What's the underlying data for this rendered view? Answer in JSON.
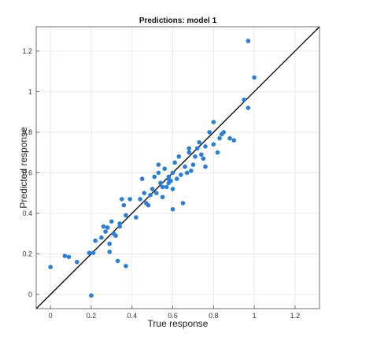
{
  "chart_data": {
    "type": "scatter",
    "title": "Predictions: model 1",
    "xlabel": "True response",
    "ylabel": "Predicted response",
    "xlim": [
      -0.07,
      1.32
    ],
    "ylim": [
      -0.07,
      1.32
    ],
    "xticks": [
      "0",
      "0.2",
      "0.4",
      "0.6",
      "0.8",
      "1",
      "1.2"
    ],
    "yticks": [
      "0",
      "0.2",
      "0.4",
      "0.6",
      "0.8",
      "1",
      "1.2"
    ],
    "xtick_values": [
      0,
      0.2,
      0.4,
      0.6,
      0.8,
      1.0,
      1.2
    ],
    "ytick_values": [
      0,
      0.2,
      0.4,
      0.6,
      0.8,
      1.0,
      1.2
    ],
    "grid": true,
    "reference_line": {
      "from": [
        -0.07,
        -0.07
      ],
      "to": [
        1.32,
        1.32
      ],
      "color": "#000000"
    },
    "point_color": "#2a7fd4",
    "points": [
      [
        0.0,
        0.135
      ],
      [
        0.07,
        0.19
      ],
      [
        0.09,
        0.185
      ],
      [
        0.13,
        0.16
      ],
      [
        0.19,
        0.205
      ],
      [
        0.21,
        0.205
      ],
      [
        0.22,
        0.265
      ],
      [
        0.2,
        -0.005
      ],
      [
        0.25,
        0.28
      ],
      [
        0.26,
        0.335
      ],
      [
        0.27,
        0.31
      ],
      [
        0.28,
        0.33
      ],
      [
        0.29,
        0.25
      ],
      [
        0.29,
        0.21
      ],
      [
        0.3,
        0.36
      ],
      [
        0.31,
        0.3
      ],
      [
        0.32,
        0.29
      ],
      [
        0.33,
        0.165
      ],
      [
        0.34,
        0.335
      ],
      [
        0.35,
        0.47
      ],
      [
        0.36,
        0.44
      ],
      [
        0.37,
        0.39
      ],
      [
        0.39,
        0.47
      ],
      [
        0.37,
        0.14
      ],
      [
        0.34,
        0.35
      ],
      [
        0.42,
        0.38
      ],
      [
        0.44,
        0.47
      ],
      [
        0.45,
        0.57
      ],
      [
        0.46,
        0.5
      ],
      [
        0.47,
        0.45
      ],
      [
        0.48,
        0.44
      ],
      [
        0.49,
        0.49
      ],
      [
        0.5,
        0.52
      ],
      [
        0.51,
        0.58
      ],
      [
        0.52,
        0.5
      ],
      [
        0.53,
        0.6
      ],
      [
        0.53,
        0.64
      ],
      [
        0.54,
        0.55
      ],
      [
        0.55,
        0.53
      ],
      [
        0.55,
        0.48
      ],
      [
        0.56,
        0.62
      ],
      [
        0.57,
        0.53
      ],
      [
        0.58,
        0.55
      ],
      [
        0.58,
        0.57
      ],
      [
        0.58,
        0.58
      ],
      [
        0.59,
        0.56
      ],
      [
        0.6,
        0.52
      ],
      [
        0.6,
        0.6
      ],
      [
        0.61,
        0.65
      ],
      [
        0.62,
        0.57
      ],
      [
        0.63,
        0.68
      ],
      [
        0.64,
        0.59
      ],
      [
        0.6,
        0.42
      ],
      [
        0.65,
        0.45
      ],
      [
        0.66,
        0.63
      ],
      [
        0.67,
        0.6
      ],
      [
        0.68,
        0.7
      ],
      [
        0.68,
        0.72
      ],
      [
        0.69,
        0.61
      ],
      [
        0.7,
        0.64
      ],
      [
        0.71,
        0.68
      ],
      [
        0.72,
        0.72
      ],
      [
        0.73,
        0.75
      ],
      [
        0.74,
        0.69
      ],
      [
        0.75,
        0.67
      ],
      [
        0.76,
        0.73
      ],
      [
        0.76,
        0.63
      ],
      [
        0.78,
        0.8
      ],
      [
        0.8,
        0.85
      ],
      [
        0.8,
        0.74
      ],
      [
        0.82,
        0.7
      ],
      [
        0.83,
        0.77
      ],
      [
        0.84,
        0.79
      ],
      [
        0.85,
        0.8
      ],
      [
        0.88,
        0.77
      ],
      [
        0.9,
        0.76
      ],
      [
        0.95,
        0.96
      ],
      [
        0.97,
        0.92
      ],
      [
        1.0,
        1.07
      ],
      [
        0.97,
        1.25
      ]
    ]
  }
}
